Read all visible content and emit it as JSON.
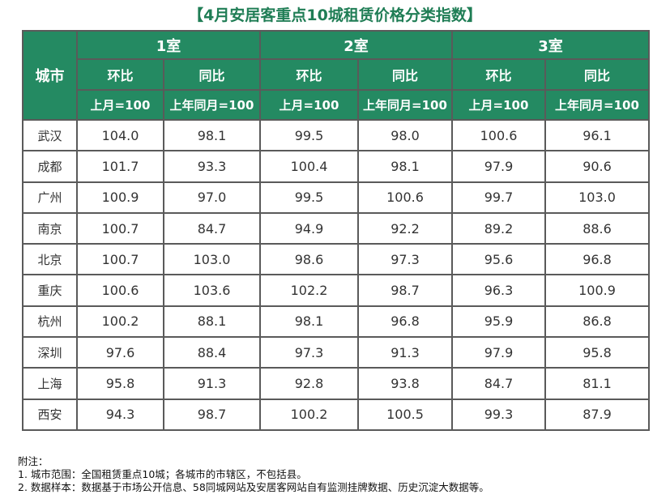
{
  "title": "【4月安居客重点10城租赁价格分类指数】",
  "chart_data": {
    "type": "table",
    "title": "【4月安居客重点10城租赁价格分类指数】",
    "city_header": "城市",
    "groups": [
      "1室",
      "2室",
      "3室"
    ],
    "sub_headers": [
      "环比",
      "同比"
    ],
    "bases": [
      "上月=100",
      "上年同月=100"
    ],
    "rows": [
      {
        "city": "武汉",
        "values": [
          "104.0",
          "98.1",
          "99.5",
          "98.0",
          "100.6",
          "96.1"
        ]
      },
      {
        "city": "成都",
        "values": [
          "101.7",
          "93.3",
          "100.4",
          "98.1",
          "97.9",
          "90.6"
        ]
      },
      {
        "city": "广州",
        "values": [
          "100.9",
          "97.0",
          "99.5",
          "100.6",
          "99.7",
          "103.0"
        ]
      },
      {
        "city": "南京",
        "values": [
          "100.7",
          "84.7",
          "94.9",
          "92.2",
          "89.2",
          "88.6"
        ]
      },
      {
        "city": "北京",
        "values": [
          "100.7",
          "103.0",
          "98.6",
          "97.3",
          "95.6",
          "96.8"
        ]
      },
      {
        "city": "重庆",
        "values": [
          "100.6",
          "103.6",
          "102.2",
          "98.7",
          "96.3",
          "100.9"
        ]
      },
      {
        "city": "杭州",
        "values": [
          "100.2",
          "88.1",
          "98.1",
          "96.8",
          "95.9",
          "86.8"
        ]
      },
      {
        "city": "深圳",
        "values": [
          "97.6",
          "88.4",
          "97.3",
          "91.3",
          "97.9",
          "95.8"
        ]
      },
      {
        "city": "上海",
        "values": [
          "95.8",
          "91.3",
          "92.8",
          "93.8",
          "84.7",
          "81.1"
        ]
      },
      {
        "city": "西安",
        "values": [
          "94.3",
          "98.7",
          "100.2",
          "100.5",
          "99.3",
          "87.9"
        ]
      }
    ]
  },
  "notes": [
    "附注：",
    "1. 城市范围：全国租赁重点10城；各城市的市辖区，不包括县。",
    "2. 数据样本：数据基于市场公开信息、58同城网站及安居客网站自有监测挂牌数据、历史沉淀大数据等。"
  ],
  "colors": {
    "header_bg": "#248a62",
    "title": "#1f7d55",
    "border": "#5a5a5a"
  }
}
